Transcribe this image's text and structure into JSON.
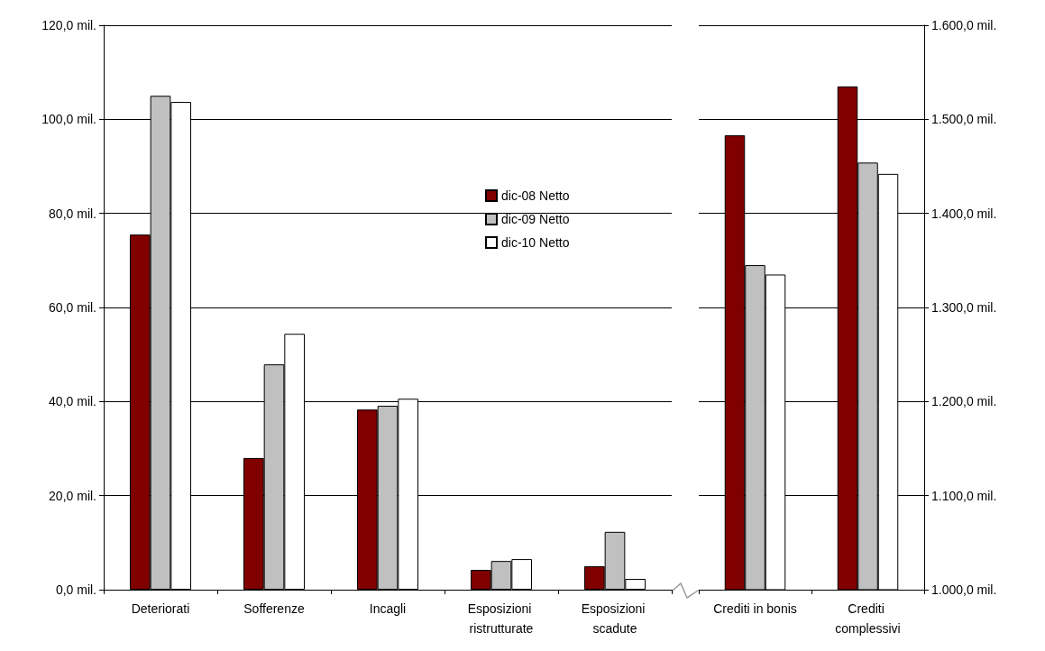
{
  "chart_data": [
    {
      "type": "bar",
      "categories": [
        "Deteriorati",
        "Sofferenze",
        "Incagli",
        "Esposizioni ristrutturate",
        "Esposizioni scadute"
      ],
      "series": [
        {
          "name": "dic-08 Netto",
          "color": "#800000",
          "values": [
            75.5,
            28.0,
            38.3,
            4.2,
            5.0
          ]
        },
        {
          "name": "dic-09 Netto",
          "color": "#c0c0c0",
          "values": [
            105.0,
            47.9,
            39.1,
            6.1,
            12.3
          ]
        },
        {
          "name": "dic-10 Netto",
          "color": "#ffffff",
          "values": [
            103.7,
            54.4,
            40.6,
            6.5,
            2.3
          ]
        }
      ],
      "ylim": [
        0,
        120
      ],
      "yticks": [
        {
          "value": 0,
          "label": "0,0 mil."
        },
        {
          "value": 20,
          "label": "20,0 mil."
        },
        {
          "value": 40,
          "label": "40,0 mil."
        },
        {
          "value": 60,
          "label": "60,0 mil."
        },
        {
          "value": 80,
          "label": "80,0 mil."
        },
        {
          "value": 100,
          "label": "100,0 mil."
        },
        {
          "value": 120,
          "label": "120,0 mil."
        }
      ],
      "grid": "y",
      "legend": "top right"
    },
    {
      "type": "bar",
      "categories": [
        "Crediti in bonis",
        "Crediti complessivi"
      ],
      "series": [
        {
          "color": "#800000",
          "values": [
            1483,
            1535
          ],
          "axis": "y2"
        },
        {
          "color": "#c0c0c0",
          "values": [
            1345,
            1454
          ],
          "axis": "y2"
        },
        {
          "color": "#ffffff",
          "values": [
            1335,
            1442
          ],
          "axis": "y2"
        }
      ],
      "y2lim": [
        1000,
        1600
      ],
      "y2ticks": [
        {
          "value": 1000,
          "label": "1.000,0 mil."
        },
        {
          "value": 1100,
          "label": "1.100,0 mil."
        },
        {
          "value": 1200,
          "label": "1.200,0 mil."
        },
        {
          "value": 1300,
          "label": "1.300,0 mil."
        },
        {
          "value": 1400,
          "label": "1.400,0 mil."
        },
        {
          "value": 1500,
          "label": "1.500,0 mil."
        },
        {
          "value": 1600,
          "label": "1.600,0 mil."
        }
      ],
      "grid": "y",
      "legend": false
    }
  ]
}
